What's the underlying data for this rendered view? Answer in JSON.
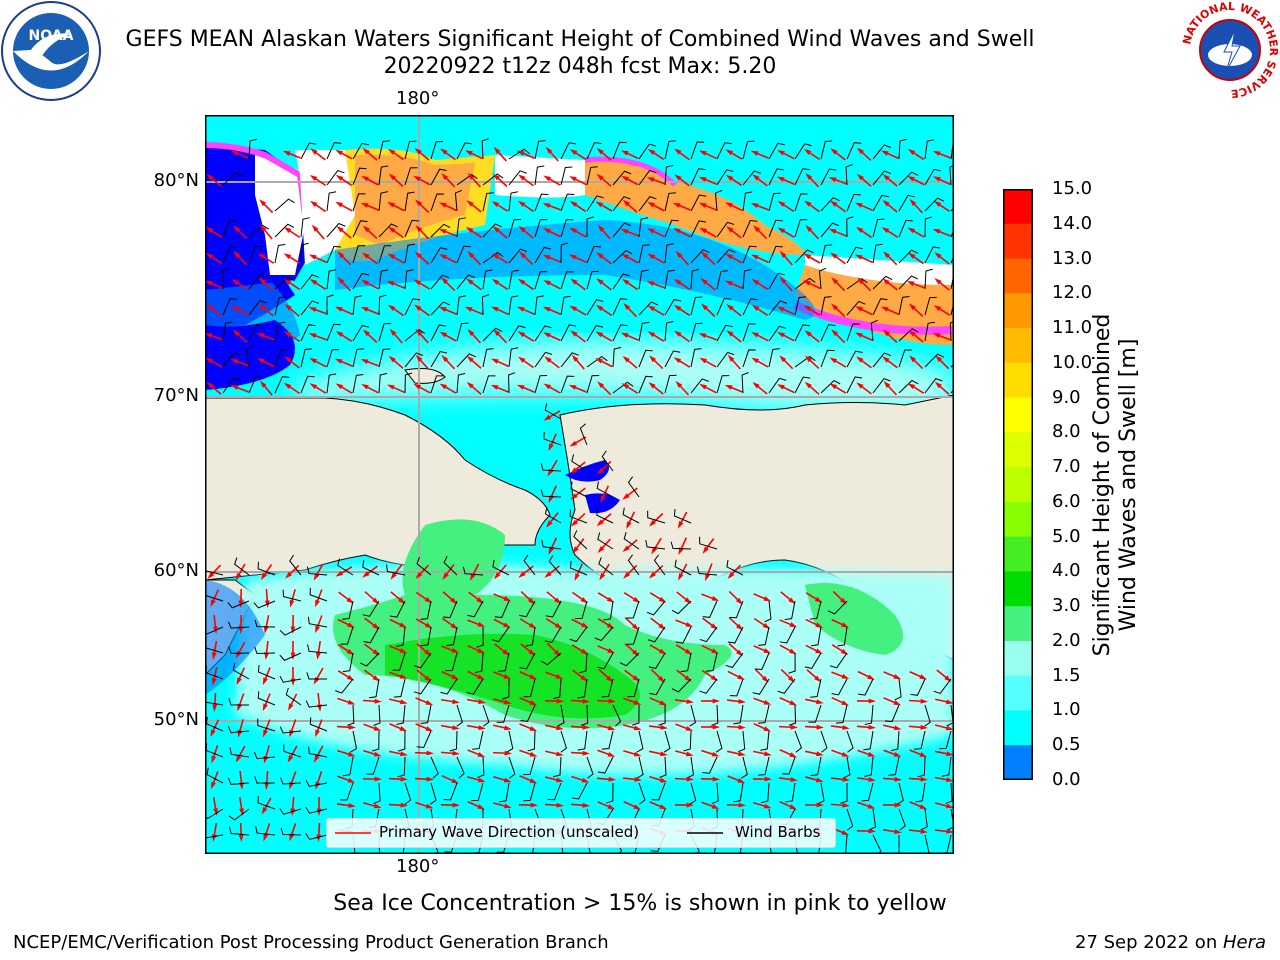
{
  "title": {
    "line1": "GEFS MEAN Alaskan Waters Significant Height of Combined Wind Waves and Swell",
    "line2": "20220922 t12z 048h fcst   Max: 5.20"
  },
  "axes": {
    "lat_labels": [
      "80°N",
      "70°N",
      "60°N",
      "50°N"
    ],
    "lon_label_top": "180°",
    "lon_label_bottom": "180°"
  },
  "colorbar": {
    "label_line1": "Significant Height of Combined",
    "label_line2": "Wind Waves and Swell [m]",
    "ticks": [
      "15.0",
      "14.0",
      "13.0",
      "12.0",
      "11.0",
      "10.0",
      "9.0",
      "8.0",
      "7.0",
      "6.0",
      "5.0",
      "4.0",
      "3.0",
      "2.0",
      "1.5",
      "1.0",
      "0.5",
      "0.0"
    ],
    "colors_top_to_bottom": [
      "#ff0000",
      "#ff3300",
      "#ff6600",
      "#ff9900",
      "#ffbb00",
      "#ffdd00",
      "#ffff00",
      "#ddff00",
      "#bbff00",
      "#88ff00",
      "#44ee22",
      "#00dd00",
      "#44f080",
      "#99ffee",
      "#55ffff",
      "#00ffff",
      "#0080ff",
      "#0000ff"
    ]
  },
  "legend": {
    "primary_wave": "Primary Wave Direction (unscaled)",
    "wind_barbs": "Wind Barbs"
  },
  "note": "Sea Ice Concentration > 15% is shown in pink to yellow",
  "footer": {
    "left": "NCEP/EMC/Verification Post Processing Product Generation Branch",
    "date": "27 Sep 2022 on ",
    "host": "Hera"
  },
  "logos": {
    "noaa": "NOAA",
    "nws_ring": "NATIONAL WEATHER SERVICE"
  },
  "map_colors": {
    "land": "#efebdc",
    "sea_light": "#aafff6",
    "sea_cyan": "#00ffff",
    "sea_blue": "#0080ff",
    "sea_deep": "#0000ff",
    "wave_green": "#44f080",
    "wave_bright": "#00dd00",
    "ice_pink": "#ff44ff",
    "ice_orange": "#ffaa44",
    "ice_yellow": "#ffdd22",
    "arrow": "#ff0000",
    "barb": "#000000",
    "grid": "#aaaaaa"
  }
}
